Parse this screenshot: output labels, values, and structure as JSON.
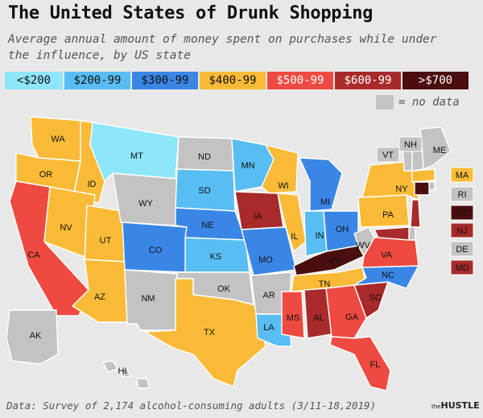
{
  "header": {
    "title": "The United States of Drunk Shopping",
    "subtitle": "Average annual amount of money spent on purchases while under the influence, by US state"
  },
  "legend": [
    {
      "key": "lt200",
      "label": "<$200",
      "color": "#8ee6fa",
      "text_color": "#111111"
    },
    {
      "key": "200",
      "label": "$200-99",
      "color": "#58bdf2",
      "text_color": "#111111"
    },
    {
      "key": "300",
      "label": "$300-99",
      "color": "#3a86e6",
      "text_color": "#111111"
    },
    {
      "key": "400",
      "label": "$400-99",
      "color": "#f9bb37",
      "text_color": "#111111"
    },
    {
      "key": "500",
      "label": "$500-99",
      "color": "#ee4a41",
      "text_color": "#ffffff"
    },
    {
      "key": "600",
      "label": "$600-99",
      "color": "#a82a2a",
      "text_color": "#ffffff"
    },
    {
      "key": "700",
      "label": ">$700",
      "color": "#4a0e0e",
      "text_color": "#ffffff"
    }
  ],
  "nodata": {
    "label": "= no data",
    "color": "#c3c3c3"
  },
  "states": [
    {
      "abbr": "WA",
      "tier": "400"
    },
    {
      "abbr": "OR",
      "tier": "400"
    },
    {
      "abbr": "CA",
      "tier": "500"
    },
    {
      "abbr": "ID",
      "tier": "400"
    },
    {
      "abbr": "NV",
      "tier": "400"
    },
    {
      "abbr": "UT",
      "tier": "400"
    },
    {
      "abbr": "AZ",
      "tier": "400"
    },
    {
      "abbr": "MT",
      "tier": "lt200"
    },
    {
      "abbr": "WY",
      "tier": "nodata"
    },
    {
      "abbr": "CO",
      "tier": "300"
    },
    {
      "abbr": "NM",
      "tier": "nodata"
    },
    {
      "abbr": "ND",
      "tier": "nodata"
    },
    {
      "abbr": "SD",
      "tier": "200"
    },
    {
      "abbr": "NE",
      "tier": "300"
    },
    {
      "abbr": "KS",
      "tier": "200"
    },
    {
      "abbr": "OK",
      "tier": "nodata"
    },
    {
      "abbr": "TX",
      "tier": "400"
    },
    {
      "abbr": "MN",
      "tier": "200"
    },
    {
      "abbr": "IA",
      "tier": "600"
    },
    {
      "abbr": "MO",
      "tier": "300"
    },
    {
      "abbr": "AR",
      "tier": "nodata"
    },
    {
      "abbr": "LA",
      "tier": "200"
    },
    {
      "abbr": "WI",
      "tier": "400"
    },
    {
      "abbr": "IL",
      "tier": "400"
    },
    {
      "abbr": "MI",
      "tier": "300"
    },
    {
      "abbr": "IN",
      "tier": "200"
    },
    {
      "abbr": "OH",
      "tier": "300"
    },
    {
      "abbr": "KY",
      "tier": "700"
    },
    {
      "abbr": "TN",
      "tier": "400"
    },
    {
      "abbr": "MS",
      "tier": "500"
    },
    {
      "abbr": "AL",
      "tier": "600"
    },
    {
      "abbr": "GA",
      "tier": "500"
    },
    {
      "abbr": "FL",
      "tier": "500"
    },
    {
      "abbr": "SC",
      "tier": "600"
    },
    {
      "abbr": "NC",
      "tier": "300"
    },
    {
      "abbr": "VA",
      "tier": "500"
    },
    {
      "abbr": "WV",
      "tier": "nodata"
    },
    {
      "abbr": "PA",
      "tier": "400"
    },
    {
      "abbr": "NY",
      "tier": "400"
    },
    {
      "abbr": "VT",
      "tier": "nodata"
    },
    {
      "abbr": "NH",
      "tier": "nodata"
    },
    {
      "abbr": "ME",
      "tier": "nodata"
    },
    {
      "abbr": "MA",
      "tier": "400"
    },
    {
      "abbr": "RI",
      "tier": "nodata"
    },
    {
      "abbr": "CT",
      "tier": "700"
    },
    {
      "abbr": "NJ",
      "tier": "600"
    },
    {
      "abbr": "DE",
      "tier": "nodata"
    },
    {
      "abbr": "MD",
      "tier": "600"
    },
    {
      "abbr": "AK",
      "tier": "nodata"
    },
    {
      "abbr": "HI",
      "tier": "nodata"
    }
  ],
  "footer": {
    "source": "Data: Survey of 2,174 alcohol-consuming adults (3/11-18,2019)",
    "brand_prefix": "the",
    "brand_name": "HUSTLE"
  }
}
